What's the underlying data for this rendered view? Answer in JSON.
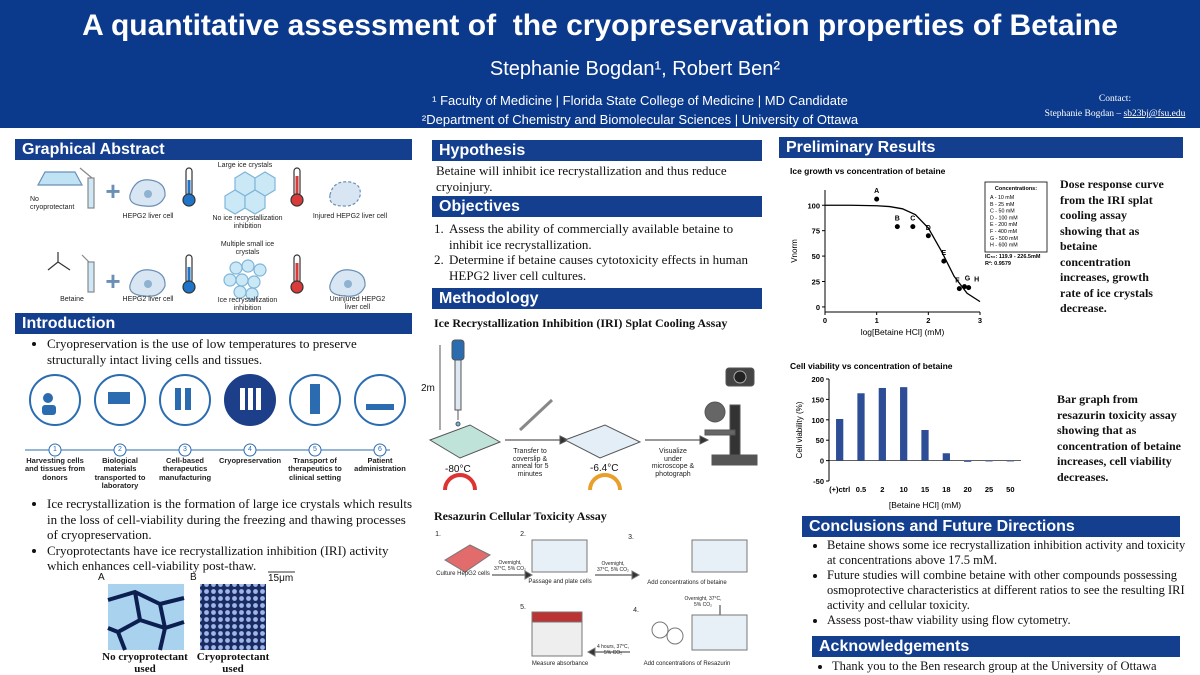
{
  "header": {
    "title": "A quantitative assessment of  the cryopreservation properties of Betaine",
    "authors": "Stephanie Bogdan¹, Robert Ben²",
    "affiliation1": "¹ Faculty of Medicine | Florida State College of Medicine | MD Candidate",
    "affiliation2": "²Department of Chemistry and Biomolecular Sciences | University of Ottawa",
    "contact_label": "Contact:",
    "contact_name": "Stephanie Bogdan – ",
    "contact_email": "sb23bj@fsu.edu"
  },
  "graphical_abstract": {
    "title": "Graphical Abstract",
    "labels": [
      "No cryoprotectant",
      "HEPG2 liver cell",
      "Large ice crystals",
      "No ice recrystallization inhibition",
      "Injured HEPG2 liver cell",
      "Betaine",
      "HEPG2 liver cell",
      "Multiple small ice crystals",
      "Ice recrystallization inhibition",
      "Uninjured HEPG2 liver cell"
    ]
  },
  "introduction": {
    "title": "Introduction",
    "bullets_top": [
      "Cryopreservation is the use of low temperatures to preserve structurally intact living cells and tissues."
    ],
    "steps": [
      {
        "number": 1,
        "label": "Harvesting cells and tissues from donors"
      },
      {
        "number": 2,
        "label": "Biological materials transported to laboratory"
      },
      {
        "number": 3,
        "label": "Cell-based therapeutics manufacturing"
      },
      {
        "number": 4,
        "label": "Cryopreservation"
      },
      {
        "number": 5,
        "label": "Transport of therapeutics to clinical setting"
      },
      {
        "number": 6,
        "label": "Patient administration"
      }
    ],
    "bullets_bottom": [
      "Ice recrystallization is the formation of large ice crystals which results in the loss of cell-viability during the freezing and thawing processes of cryopreservation.",
      "Cryoprotectants have ice recrystallization inhibition (IRI) activity which enhances cell-viability post-thaw."
    ],
    "images": [
      {
        "letter": "A",
        "caption": "No cryoprotectant used"
      },
      {
        "letter": "B",
        "caption": "Cryoprotectant used",
        "scale": "15μm"
      }
    ]
  },
  "hypothesis": {
    "title": "Hypothesis",
    "text": "Betaine will inhibit ice recrystallization and thus reduce cryoinjury."
  },
  "objectives": {
    "title": "Objectives",
    "items": [
      {
        "marker": "1.",
        "text": "Assess the ability of commercially available betaine to inhibit ice recrystallization."
      },
      {
        "marker": "2.",
        "text": "Determine if betaine causes cytotoxicity effects in human HEPG2 liver cell cultures."
      }
    ]
  },
  "methodology": {
    "title": "Methodology",
    "iri": {
      "title": "Ice Recrystallization Inhibition (IRI) Splat Cooling Assay",
      "height": "2m",
      "temp1": "-80°C",
      "step1": "Transfer to coverslip & anneal for 5 minutes",
      "temp2": "-6.4°C",
      "step2": "Visualize under microscope & photograph"
    },
    "resazurin": {
      "title": "Resazurin Cellular Toxicity Assay",
      "markers": [
        "1.",
        "2.",
        "3.",
        "4.",
        "5."
      ],
      "labels": [
        "Culture HepG2 cells",
        "Passage and plate cells",
        "Add concentrations of betaine",
        "Add concentrations of Resazurin",
        "Measure absorbance"
      ],
      "conditions": [
        "Overnight, 37°C, 5% CO₂",
        "Overnight, 37°C, 5% CO₂",
        "Overnight, 37°C, 5% CO₂",
        "4 hours, 37°C, 5% CO₂"
      ]
    }
  },
  "results": {
    "title": "Preliminary Results",
    "descriptions": [
      "Dose response curve from the IRI splat cooling assay showing that as betaine concentration increases, growth rate of ice crystals decrease.",
      "Bar graph from resazurin toxicity assay showing that as concentration of betaine increases, cell viability decreases."
    ]
  },
  "chart_data": [
    {
      "type": "scatter",
      "title": "Ice growth vs concentration of betaine",
      "x_label": "log[Betaine HCl] (mM)",
      "y_label": "Vnorm",
      "xlim": [
        0,
        3
      ],
      "xticks": [
        0,
        1,
        2,
        3
      ],
      "ylim": [
        -5,
        115
      ],
      "yticks": [
        0,
        25,
        50,
        75,
        100
      ],
      "points": {
        "color": "#000000",
        "x": [
          1,
          1.4,
          1.7,
          2,
          2.3,
          2.6,
          2.7,
          2.78
        ],
        "values": [
          106,
          79,
          79,
          70,
          45,
          18,
          20,
          19
        ],
        "labels": [
          "A",
          "B",
          "C",
          "D",
          "E",
          "F",
          "G",
          "H"
        ]
      },
      "fit": {
        "color": "#000000",
        "x": [
          0,
          0.5,
          1,
          1.25,
          1.5,
          1.75,
          2,
          2.25,
          2.5,
          2.75,
          3
        ],
        "values": [
          100,
          100,
          99.5,
          98.7,
          96.5,
          90.7,
          77.6,
          55.2,
          30,
          13.4,
          5.2
        ]
      },
      "legend": {
        "title": "Concentrations:",
        "entries": [
          "A - 10 mM",
          "B - 25 mM",
          "C - 50 mM",
          "D - 100 mM",
          "E - 200 mM",
          "F - 400 mM",
          "G - 500 mM",
          "H - 600 mM"
        ]
      },
      "annotations": [
        "IC₅₀: 119.9 - 226.5mM",
        "R²: 0.9579"
      ]
    },
    {
      "type": "bar",
      "title": "Cell viability vs concentration of betaine",
      "x_label": "[Betaine HCl] (mM)",
      "y_label": "Cell viability (%)",
      "categories": [
        "(+)ctrl",
        "0.5",
        "2",
        "10",
        "15",
        "18",
        "20",
        "25",
        "50"
      ],
      "values": [
        102,
        165,
        178,
        180,
        75,
        18,
        -3,
        -2,
        -2
      ],
      "color": "#2d4e96",
      "ylim": [
        -50,
        200
      ],
      "yticks": [
        -50,
        0,
        50,
        100,
        150,
        200
      ]
    }
  ],
  "conclusions": {
    "title": "Conclusions and Future Directions",
    "bullets": [
      "Betaine shows some ice recrystallization inhibition activity and toxicity at concentrations above 17.5 mM.",
      "Future studies will combine betaine with other compounds possessing osmoprotective characteristics at different ratios to see the resulting IRI activity  and cellular toxicity.",
      "Assess post-thaw viability using flow cytometry."
    ]
  },
  "acknowledgements": {
    "title": "Acknowledgements",
    "bullets": [
      "Thank you to the Ben research group at the University of Ottawa"
    ]
  }
}
